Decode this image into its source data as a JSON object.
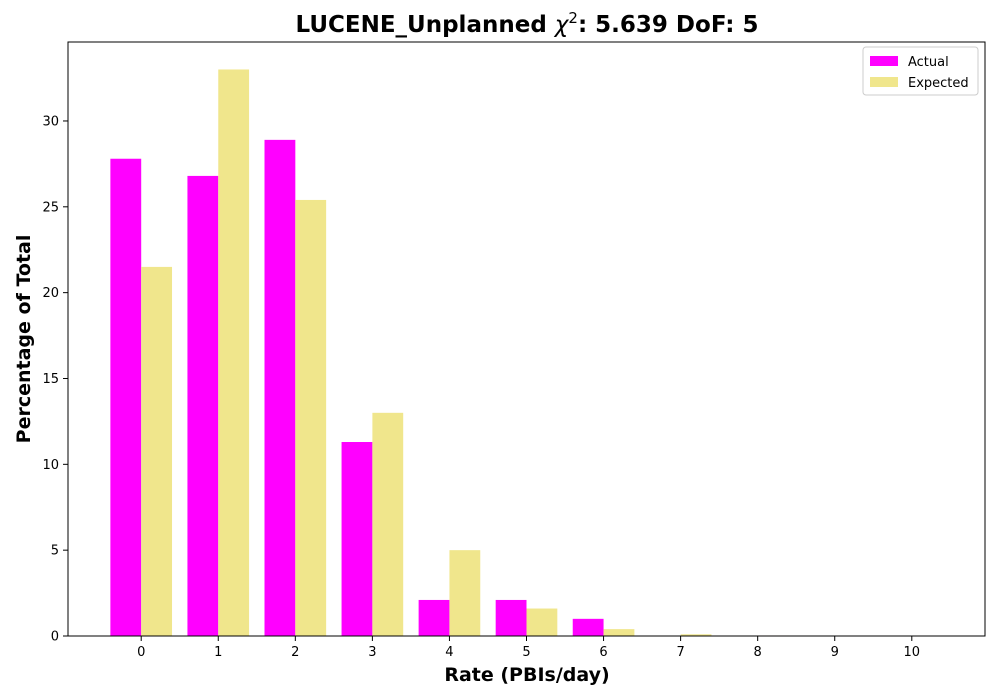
{
  "chart_data": {
    "type": "bar",
    "title_prefix": "LUCENE_Unplanned ",
    "title_chi": "χ",
    "title_sup": "2",
    "title_suffix": ": 5.639 DoF: 5",
    "xlabel": "Rate (PBIs/day)",
    "ylabel": "Percentage of Total",
    "categories": [
      "0",
      "1",
      "2",
      "3",
      "4",
      "5",
      "6",
      "7",
      "8",
      "9",
      "10"
    ],
    "x": [
      0,
      1,
      2,
      3,
      4,
      5,
      6,
      7,
      8,
      9,
      10
    ],
    "xlim": [
      -0.95,
      10.95
    ],
    "ylim": [
      0,
      34.6
    ],
    "yticks": [
      0,
      5,
      10,
      15,
      20,
      25,
      30
    ],
    "grid": false,
    "legend_position": "top-right",
    "series": [
      {
        "name": "Actual",
        "color": "#ff00ff",
        "values": [
          27.8,
          26.8,
          28.9,
          11.3,
          2.1,
          2.1,
          1.0,
          0,
          0,
          0,
          0
        ]
      },
      {
        "name": "Expected",
        "color": "#f0e68c",
        "values": [
          21.5,
          33.0,
          25.4,
          13.0,
          5.0,
          1.6,
          0.4,
          0.1,
          0.03,
          0.01,
          0
        ]
      }
    ]
  }
}
